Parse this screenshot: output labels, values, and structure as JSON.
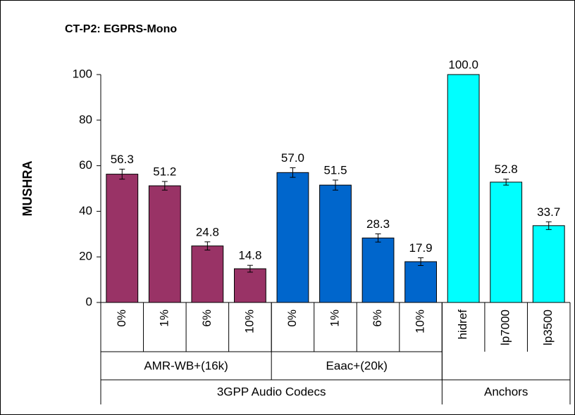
{
  "chart_data": {
    "type": "bar",
    "title": "CT-P2:  EGPRS-Mono",
    "y_label": "MUSHRA",
    "categories": [
      "0%",
      "1%",
      "6%",
      "10%",
      "0%",
      "1%",
      "6%",
      "10%",
      "hidref",
      "lp7000",
      "lp3500"
    ],
    "values": [
      56.3,
      51.2,
      24.8,
      14.8,
      57.0,
      51.5,
      28.3,
      17.9,
      100.0,
      52.8,
      33.7
    ],
    "value_labels": [
      "56.3",
      "51.2",
      "24.8",
      "14.8",
      "57.0",
      "51.5",
      "28.3",
      "17.9",
      "100.0",
      "52.8",
      "33.7"
    ],
    "errors": [
      2.2,
      1.9,
      1.8,
      1.5,
      2.1,
      2.2,
      1.8,
      1.7,
      0,
      1.3,
      1.7
    ],
    "colors": [
      "#993366",
      "#993366",
      "#993366",
      "#993366",
      "#0066cc",
      "#0066cc",
      "#0066cc",
      "#0066cc",
      "#00ffff",
      "#00ffff",
      "#00ffff"
    ],
    "category_groups": [
      {
        "name": "AMR-WB+(16k)",
        "size": 4
      },
      {
        "name": "Eaac+(20k)",
        "size": 4
      }
    ],
    "top_groups": [
      {
        "name": "3GPP Audio Codecs",
        "size": 8
      },
      {
        "name": "Anchors",
        "size": 3
      }
    ],
    "ylim": [
      0,
      100
    ],
    "yticks": [
      0,
      20,
      40,
      60,
      80,
      100
    ],
    "grid": false
  }
}
